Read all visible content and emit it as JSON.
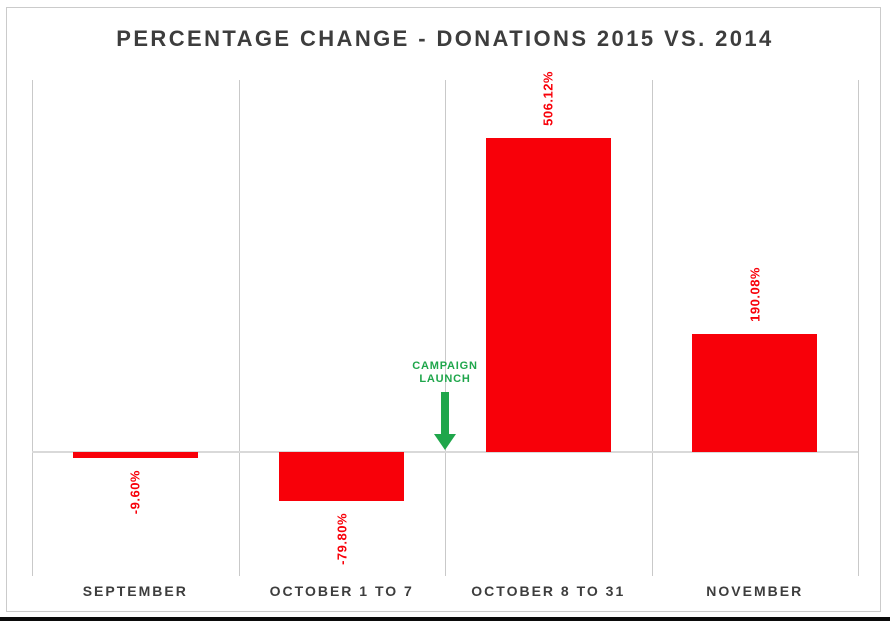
{
  "chart_data": {
    "type": "bar",
    "title": "PERCENTAGE CHANGE - DONATIONS 2015 VS. 2014",
    "categories": [
      "SEPTEMBER",
      "OCTOBER 1 TO 7",
      "OCTOBER 8 TO 31",
      "NOVEMBER"
    ],
    "values": [
      -9.6,
      -79.8,
      506.12,
      190.08
    ],
    "value_labels": [
      "-9.60%",
      "-79.80%",
      "506.12%",
      "190.08%"
    ],
    "xlabel": "",
    "ylabel": "",
    "ylim": [
      -200,
      600
    ],
    "grid": "vertical column separators only, zero baseline shown",
    "legend_position": "none",
    "annotation": {
      "lines": [
        "CAMPAIGN",
        "LAUNCH"
      ],
      "text": "CAMPAIGN LAUNCH",
      "arrow": "down-arrow pointing to zero baseline between OCTOBER 1 TO 7 and OCTOBER 8 TO 31"
    }
  },
  "colors": {
    "bar": "#f80009",
    "value_label": "#f80009",
    "annotation_green": "#1fa64b",
    "title_text": "#3d3d3d",
    "category_text": "#3d3d3d",
    "gridline": "#c9c9c9",
    "zero_line": "#d9d9d9",
    "frame_border": "#cbcbcb",
    "window_bottom_edge": "#0b0b0b",
    "background": "#ffffff"
  }
}
